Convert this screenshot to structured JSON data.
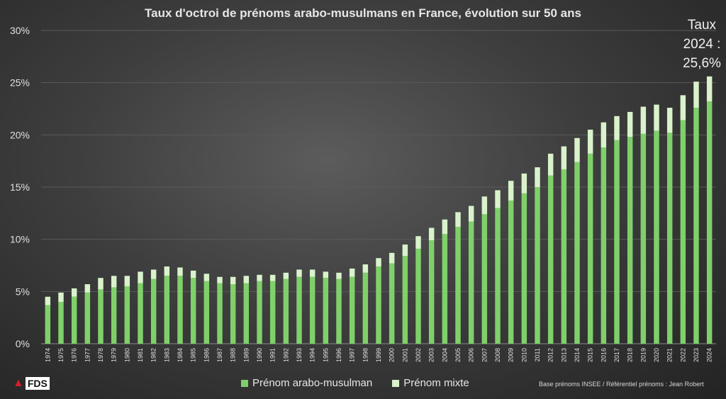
{
  "chart_data": {
    "type": "stacked-bar",
    "title": "Taux d'octroi de prénoms arabo-musulmans en France, évolution sur 50 ans",
    "annotation": [
      "Taux",
      "2024 :",
      "25,6%"
    ],
    "ylim": [
      0,
      30
    ],
    "yticks": [
      0,
      5,
      10,
      15,
      20,
      25,
      30
    ],
    "ytick_labels": [
      "0%",
      "5%",
      "10%",
      "15%",
      "20%",
      "25%",
      "30%"
    ],
    "grid": true,
    "categories": [
      "1974",
      "1975",
      "1976",
      "1977",
      "1978",
      "1979",
      "1980",
      "1981",
      "1982",
      "1983",
      "1984",
      "1985",
      "1986",
      "1987",
      "1988",
      "1989",
      "1990",
      "1991",
      "1992",
      "1993",
      "1994",
      "1995",
      "1996",
      "1997",
      "1998",
      "1999",
      "2000",
      "2001",
      "2002",
      "2003",
      "2004",
      "2005",
      "2006",
      "2007",
      "2008",
      "2009",
      "2010",
      "2011",
      "2012",
      "2013",
      "2014",
      "2015",
      "2016",
      "2017",
      "2018",
      "2019",
      "2020",
      "2021",
      "2022",
      "2023",
      "2024"
    ],
    "series": [
      {
        "name": "Prénom arabo-musulman",
        "color": "#7fd06a",
        "values": [
          3.7,
          4.0,
          4.5,
          4.9,
          5.2,
          5.4,
          5.5,
          5.8,
          6.2,
          6.5,
          6.5,
          6.3,
          6.0,
          5.8,
          5.7,
          5.8,
          6.0,
          6.0,
          6.2,
          6.4,
          6.4,
          6.3,
          6.2,
          6.4,
          6.8,
          7.4,
          7.7,
          8.4,
          9.1,
          9.9,
          10.5,
          11.2,
          11.7,
          12.4,
          13.0,
          13.7,
          14.4,
          15.0,
          16.1,
          16.7,
          17.4,
          18.2,
          18.8,
          19.5,
          19.8,
          20.1,
          20.4,
          20.2,
          21.4,
          22.6,
          23.2
        ]
      },
      {
        "name": "Prénom mixte",
        "color": "#d9f2cc",
        "values": [
          0.8,
          0.9,
          0.8,
          0.8,
          1.1,
          1.1,
          1.0,
          1.1,
          0.9,
          0.9,
          0.8,
          0.7,
          0.7,
          0.6,
          0.7,
          0.7,
          0.6,
          0.6,
          0.6,
          0.7,
          0.7,
          0.6,
          0.6,
          0.8,
          0.8,
          0.8,
          1.0,
          1.1,
          1.2,
          1.2,
          1.4,
          1.4,
          1.5,
          1.7,
          1.7,
          1.9,
          1.9,
          1.9,
          2.1,
          2.2,
          2.3,
          2.3,
          2.4,
          2.3,
          2.4,
          2.6,
          2.5,
          2.4,
          2.4,
          2.5,
          2.4
        ]
      }
    ],
    "legend_position": "bottom-center"
  },
  "source": "Base prénoms INSEE / Référentiel prénoms : Jean Robert",
  "logo": {
    "text": "FDS",
    "icon": "rooster-icon"
  }
}
